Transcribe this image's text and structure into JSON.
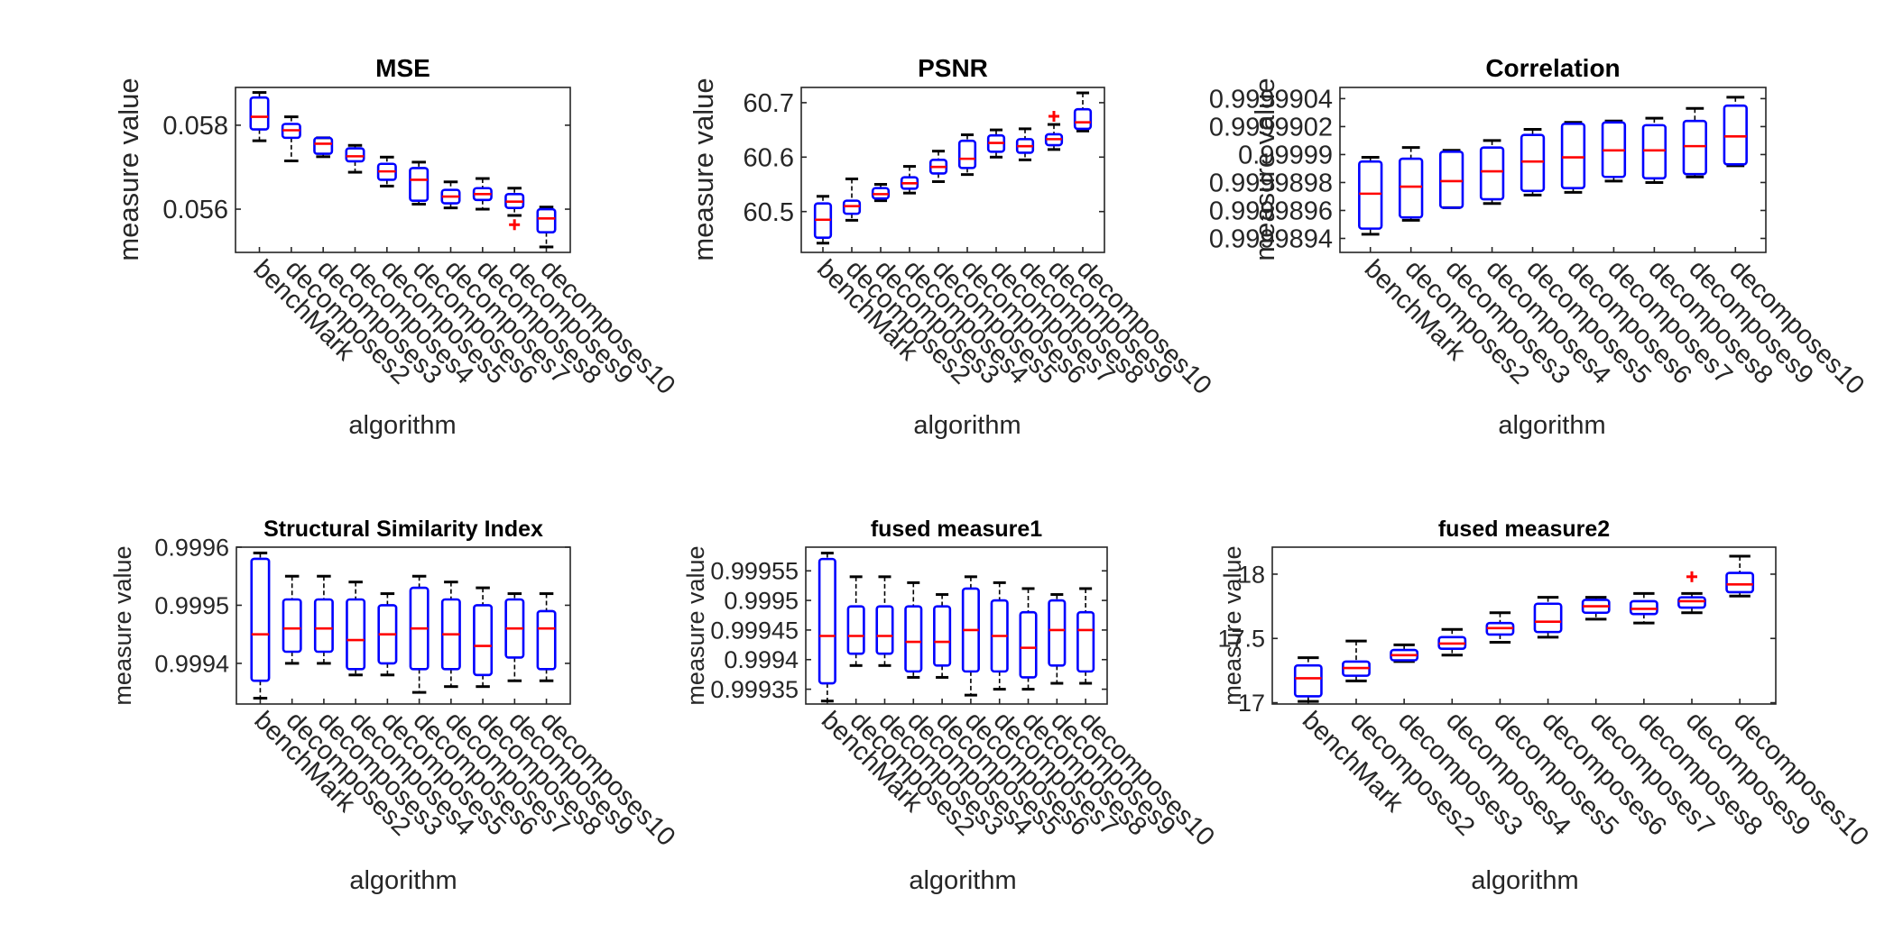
{
  "figure": {
    "colors": {
      "box": "#0000ff",
      "median": "#ff0000",
      "whisker": "#000000",
      "outlier": "#ff0000",
      "axis": "#262626"
    }
  },
  "chart_data": [
    {
      "type": "boxplot",
      "title": "MSE",
      "xlabel": "algorithm",
      "ylabel": "measure value",
      "categories": [
        "benchMark",
        "decomposes2",
        "decomposes3",
        "decomposes4",
        "decomposes5",
        "decomposes6",
        "decomposes7",
        "decomposes8",
        "decomposes9",
        "decomposes10"
      ],
      "ylim": [
        0.05497,
        0.0589
      ],
      "yticks": [
        0.056,
        0.058
      ],
      "ytick_labels": [
        "0.056",
        "0.058"
      ],
      "boxes": [
        {
          "min": 0.05763,
          "q1": 0.0579,
          "median": 0.0582,
          "q3": 0.05866,
          "max": 0.05878,
          "outliers": []
        },
        {
          "min": 0.05715,
          "q1": 0.0577,
          "median": 0.05788,
          "q3": 0.05803,
          "max": 0.0582,
          "outliers": []
        },
        {
          "min": 0.05725,
          "q1": 0.05732,
          "median": 0.05756,
          "q3": 0.0577,
          "max": 0.0577,
          "outliers": []
        },
        {
          "min": 0.05688,
          "q1": 0.05714,
          "median": 0.05726,
          "q3": 0.05745,
          "max": 0.05752,
          "outliers": []
        },
        {
          "min": 0.05655,
          "q1": 0.0567,
          "median": 0.0569,
          "q3": 0.05708,
          "max": 0.05724,
          "outliers": []
        },
        {
          "min": 0.05612,
          "q1": 0.0562,
          "median": 0.0567,
          "q3": 0.05698,
          "max": 0.05712,
          "outliers": []
        },
        {
          "min": 0.05603,
          "q1": 0.05614,
          "median": 0.0563,
          "q3": 0.05646,
          "max": 0.05665,
          "outliers": []
        },
        {
          "min": 0.056,
          "q1": 0.05622,
          "median": 0.05636,
          "q3": 0.0565,
          "max": 0.05673,
          "outliers": []
        },
        {
          "min": 0.05585,
          "q1": 0.05603,
          "median": 0.05618,
          "q3": 0.05636,
          "max": 0.0565,
          "outliers": [
            0.05563
          ]
        },
        {
          "min": 0.0551,
          "q1": 0.05545,
          "median": 0.05578,
          "q3": 0.056,
          "max": 0.05605,
          "outliers": []
        }
      ]
    },
    {
      "type": "boxplot",
      "title": "PSNR",
      "xlabel": "algorithm",
      "ylabel": "measure value",
      "categories": [
        "benchMark",
        "decomposes2",
        "decomposes3",
        "decomposes4",
        "decomposes5",
        "decomposes6",
        "decomposes7",
        "decomposes8",
        "decomposes9",
        "decomposes10"
      ],
      "ylim": [
        60.425,
        60.728
      ],
      "yticks": [
        60.5,
        60.6,
        60.7
      ],
      "ytick_labels": [
        "60.5",
        "60.6",
        "60.7"
      ],
      "boxes": [
        {
          "min": 60.442,
          "q1": 60.452,
          "median": 60.485,
          "q3": 60.515,
          "max": 60.528,
          "outliers": []
        },
        {
          "min": 60.484,
          "q1": 60.496,
          "median": 60.51,
          "q3": 60.52,
          "max": 60.56,
          "outliers": []
        },
        {
          "min": 60.52,
          "q1": 60.524,
          "median": 60.532,
          "q3": 60.543,
          "max": 60.55,
          "outliers": []
        },
        {
          "min": 60.534,
          "q1": 60.542,
          "median": 60.552,
          "q3": 60.563,
          "max": 60.583,
          "outliers": []
        },
        {
          "min": 60.555,
          "q1": 60.57,
          "median": 60.582,
          "q3": 60.595,
          "max": 60.611,
          "outliers": []
        },
        {
          "min": 60.568,
          "q1": 60.58,
          "median": 60.597,
          "q3": 60.63,
          "max": 60.641,
          "outliers": []
        },
        {
          "min": 60.6,
          "q1": 60.61,
          "median": 60.626,
          "q3": 60.64,
          "max": 60.65,
          "outliers": []
        },
        {
          "min": 60.595,
          "q1": 60.608,
          "median": 60.62,
          "q3": 60.633,
          "max": 60.652,
          "outliers": []
        },
        {
          "min": 60.614,
          "q1": 60.622,
          "median": 60.633,
          "q3": 60.642,
          "max": 60.66,
          "outliers": [
            60.675
          ]
        },
        {
          "min": 60.648,
          "q1": 60.652,
          "median": 60.664,
          "q3": 60.688,
          "max": 60.718,
          "outliers": []
        }
      ]
    },
    {
      "type": "boxplot",
      "title": "Correlation",
      "xlabel": "algorithm",
      "ylabel": "measure value",
      "categories": [
        "benchMark",
        "decomposes2",
        "decomposes3",
        "decomposes4",
        "decomposes5",
        "decomposes6",
        "decomposes7",
        "decomposes8",
        "decomposes9",
        "decomposes10"
      ],
      "ylim": [
        0.9999893,
        0.99999048
      ],
      "yticks": [
        0.9999894,
        0.9999896,
        0.9999898,
        0.99999,
        0.9999902,
        0.9999904
      ],
      "ytick_labels": [
        "0.9999894",
        "0.9999896",
        "0.9999898",
        "0.99999",
        "0.9999902",
        "0.9999904"
      ],
      "boxes": [
        {
          "min": 0.99998943,
          "q1": 0.99998947,
          "median": 0.99998972,
          "q3": 0.99998995,
          "max": 0.99998998,
          "outliers": []
        },
        {
          "min": 0.99998953,
          "q1": 0.99998955,
          "median": 0.99998977,
          "q3": 0.99998997,
          "max": 0.99999005,
          "outliers": []
        },
        {
          "min": 0.99998962,
          "q1": 0.99998962,
          "median": 0.99998981,
          "q3": 0.99999002,
          "max": 0.99999003,
          "outliers": []
        },
        {
          "min": 0.99998965,
          "q1": 0.99998968,
          "median": 0.99998988,
          "q3": 0.99999005,
          "max": 0.9999901,
          "outliers": []
        },
        {
          "min": 0.99998971,
          "q1": 0.99998974,
          "median": 0.99998995,
          "q3": 0.99999014,
          "max": 0.99999018,
          "outliers": []
        },
        {
          "min": 0.99998973,
          "q1": 0.99998976,
          "median": 0.99998998,
          "q3": 0.99999022,
          "max": 0.99999023,
          "outliers": []
        },
        {
          "min": 0.99998981,
          "q1": 0.99998984,
          "median": 0.99999003,
          "q3": 0.99999023,
          "max": 0.99999024,
          "outliers": []
        },
        {
          "min": 0.9999898,
          "q1": 0.99998983,
          "median": 0.99999003,
          "q3": 0.99999021,
          "max": 0.99999026,
          "outliers": []
        },
        {
          "min": 0.99998984,
          "q1": 0.99998986,
          "median": 0.99999006,
          "q3": 0.99999024,
          "max": 0.99999033,
          "outliers": []
        },
        {
          "min": 0.99998992,
          "q1": 0.99998993,
          "median": 0.99999013,
          "q3": 0.99999035,
          "max": 0.99999041,
          "outliers": []
        }
      ]
    },
    {
      "type": "boxplot",
      "title": "Structural Similarity Index",
      "xlabel": "algorithm",
      "ylabel": "measure value",
      "categories": [
        "benchMark",
        "decomposes2",
        "decomposes3",
        "decomposes4",
        "decomposes5",
        "decomposes6",
        "decomposes7",
        "decomposes8",
        "decomposes9",
        "decomposes10"
      ],
      "ylim": [
        0.99933,
        0.9996
      ],
      "yticks": [
        0.9994,
        0.9995,
        0.9996
      ],
      "ytick_labels": [
        "0.9994",
        "0.9995",
        "0.9996"
      ],
      "boxes": [
        {
          "min": 0.99934,
          "q1": 0.99937,
          "median": 0.99945,
          "q3": 0.99958,
          "max": 0.99959,
          "outliers": []
        },
        {
          "min": 0.9994,
          "q1": 0.99942,
          "median": 0.99946,
          "q3": 0.99951,
          "max": 0.99955,
          "outliers": []
        },
        {
          "min": 0.9994,
          "q1": 0.99942,
          "median": 0.99946,
          "q3": 0.99951,
          "max": 0.99955,
          "outliers": []
        },
        {
          "min": 0.99938,
          "q1": 0.99939,
          "median": 0.99944,
          "q3": 0.99951,
          "max": 0.99954,
          "outliers": []
        },
        {
          "min": 0.99938,
          "q1": 0.9994,
          "median": 0.99945,
          "q3": 0.9995,
          "max": 0.99952,
          "outliers": []
        },
        {
          "min": 0.99935,
          "q1": 0.99939,
          "median": 0.99946,
          "q3": 0.99953,
          "max": 0.99955,
          "outliers": []
        },
        {
          "min": 0.99936,
          "q1": 0.99939,
          "median": 0.99945,
          "q3": 0.99951,
          "max": 0.99954,
          "outliers": []
        },
        {
          "min": 0.99936,
          "q1": 0.99938,
          "median": 0.99943,
          "q3": 0.9995,
          "max": 0.99953,
          "outliers": []
        },
        {
          "min": 0.99937,
          "q1": 0.99941,
          "median": 0.99946,
          "q3": 0.99951,
          "max": 0.99952,
          "outliers": []
        },
        {
          "min": 0.99937,
          "q1": 0.99939,
          "median": 0.99946,
          "q3": 0.99949,
          "max": 0.99952,
          "outliers": []
        }
      ]
    },
    {
      "type": "boxplot",
      "title": "fused measure1",
      "xlabel": "algorithm",
      "ylabel": "measure value",
      "categories": [
        "benchMark",
        "decomposes2",
        "decomposes3",
        "decomposes4",
        "decomposes5",
        "decomposes6",
        "decomposes7",
        "decomposes8",
        "decomposes9",
        "decomposes10"
      ],
      "ylim": [
        0.999325,
        0.99959
      ],
      "yticks": [
        0.99935,
        0.9994,
        0.99945,
        0.9995,
        0.99955
      ],
      "ytick_labels": [
        "0.99935",
        "0.9994",
        "0.99945",
        "0.9995",
        "0.99955"
      ],
      "boxes": [
        {
          "min": 0.99933,
          "q1": 0.99936,
          "median": 0.99944,
          "q3": 0.99957,
          "max": 0.99958,
          "outliers": []
        },
        {
          "min": 0.99939,
          "q1": 0.99941,
          "median": 0.99944,
          "q3": 0.99949,
          "max": 0.99954,
          "outliers": []
        },
        {
          "min": 0.99939,
          "q1": 0.99941,
          "median": 0.99944,
          "q3": 0.99949,
          "max": 0.99954,
          "outliers": []
        },
        {
          "min": 0.99937,
          "q1": 0.99938,
          "median": 0.99943,
          "q3": 0.99949,
          "max": 0.99953,
          "outliers": []
        },
        {
          "min": 0.99937,
          "q1": 0.99939,
          "median": 0.99943,
          "q3": 0.99949,
          "max": 0.99951,
          "outliers": []
        },
        {
          "min": 0.99934,
          "q1": 0.99938,
          "median": 0.99945,
          "q3": 0.99952,
          "max": 0.99954,
          "outliers": []
        },
        {
          "min": 0.99935,
          "q1": 0.99938,
          "median": 0.99944,
          "q3": 0.9995,
          "max": 0.99953,
          "outliers": []
        },
        {
          "min": 0.99935,
          "q1": 0.99937,
          "median": 0.99942,
          "q3": 0.99948,
          "max": 0.99952,
          "outliers": []
        },
        {
          "min": 0.99936,
          "q1": 0.99939,
          "median": 0.99945,
          "q3": 0.9995,
          "max": 0.99951,
          "outliers": []
        },
        {
          "min": 0.99936,
          "q1": 0.99938,
          "median": 0.99945,
          "q3": 0.99948,
          "max": 0.99952,
          "outliers": []
        }
      ]
    },
    {
      "type": "boxplot",
      "title": "fused measure2",
      "xlabel": "algorithm",
      "ylabel": "measure value",
      "categories": [
        "benchMark",
        "decomposes2",
        "decomposes3",
        "decomposes4",
        "decomposes5",
        "decomposes6",
        "decomposes7",
        "decomposes8",
        "decomposes9",
        "decomposes10"
      ],
      "ylim": [
        16.99,
        18.21
      ],
      "yticks": [
        17,
        17.5,
        18
      ],
      "ytick_labels": [
        "17",
        "17.5",
        "18"
      ],
      "boxes": [
        {
          "min": 17.01,
          "q1": 17.05,
          "median": 17.19,
          "q3": 17.29,
          "max": 17.35,
          "outliers": []
        },
        {
          "min": 17.17,
          "q1": 17.21,
          "median": 17.27,
          "q3": 17.32,
          "max": 17.48,
          "outliers": []
        },
        {
          "min": 17.32,
          "q1": 17.33,
          "median": 17.37,
          "q3": 17.41,
          "max": 17.45,
          "outliers": []
        },
        {
          "min": 17.37,
          "q1": 17.42,
          "median": 17.46,
          "q3": 17.51,
          "max": 17.57,
          "outliers": []
        },
        {
          "min": 17.47,
          "q1": 17.53,
          "median": 17.58,
          "q3": 17.62,
          "max": 17.7,
          "outliers": []
        },
        {
          "min": 17.51,
          "q1": 17.55,
          "median": 17.63,
          "q3": 17.77,
          "max": 17.82,
          "outliers": []
        },
        {
          "min": 17.65,
          "q1": 17.7,
          "median": 17.75,
          "q3": 17.8,
          "max": 17.82,
          "outliers": []
        },
        {
          "min": 17.62,
          "q1": 17.69,
          "median": 17.73,
          "q3": 17.79,
          "max": 17.85,
          "outliers": []
        },
        {
          "min": 17.7,
          "q1": 17.74,
          "median": 17.79,
          "q3": 17.82,
          "max": 17.85,
          "outliers": [
            17.98
          ]
        },
        {
          "min": 17.83,
          "q1": 17.86,
          "median": 17.92,
          "q3": 18.01,
          "max": 18.14,
          "outliers": []
        }
      ]
    }
  ]
}
